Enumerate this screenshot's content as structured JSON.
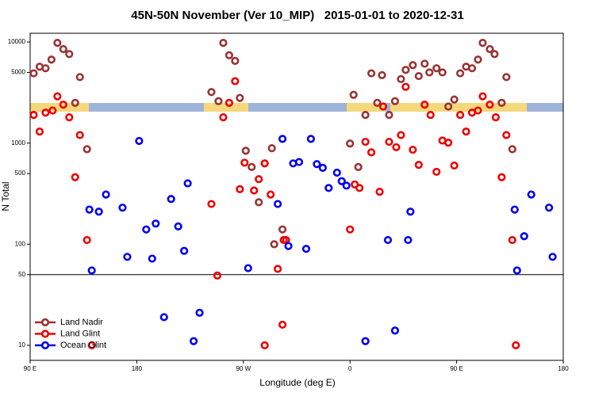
{
  "chart_data": {
    "type": "scatter",
    "title": "45N-50N November (Ver 10_MIP)   2015-01-01 to 2020-12-31",
    "x_label": "Longitude (deg E)",
    "y_label": "N Total",
    "xlim": [
      90,
      540
    ],
    "xticks": [
      {
        "value": 90,
        "label": "90 E"
      },
      180,
      {
        "value": 270,
        "label": "90 W"
      },
      {
        "value": 360,
        "label": "0"
      },
      {
        "value": 450,
        "label": "90 E"
      },
      {
        "value": 540,
        "label": "180"
      }
    ],
    "ylim": [
      7.1,
      12200
    ],
    "y_scale": "log",
    "yticks": [
      10,
      50,
      100,
      500,
      1000,
      5000,
      10000
    ],
    "hline": 50,
    "legend": "bottomleft",
    "series": [
      {
        "name": "Land Nadir",
        "color": "#993333",
        "x": [
          93,
          98,
          103,
          108,
          113,
          118,
          123,
          128,
          132,
          138,
          243,
          249,
          253,
          258,
          263,
          267,
          272,
          277,
          283,
          288,
          294,
          296,
          303,
          360,
          363,
          367,
          373,
          378,
          383,
          387,
          393,
          398,
          403,
          407,
          413,
          418,
          423,
          427,
          433,
          438,
          443,
          448,
          453,
          458,
          463,
          468,
          472,
          478,
          482,
          488,
          492,
          497
        ],
        "values": [
          4900,
          5700,
          5500,
          6700,
          9800,
          8500,
          7600,
          2500,
          4500,
          870,
          3200,
          2600,
          9800,
          7400,
          6500,
          2800,
          840,
          580,
          260,
          630,
          890,
          100,
          140,
          990,
          3000,
          580,
          1900,
          4900,
          2500,
          4700,
          1900,
          2600,
          4300,
          5300,
          5900,
          4600,
          6100,
          5000,
          5500,
          5000,
          2300,
          2700,
          4900,
          5700,
          5500,
          6700,
          9800,
          8500,
          7600,
          2500,
          4500,
          870
        ]
      },
      {
        "name": "Land Glint",
        "color": "#ee0000",
        "x": [
          93,
          98,
          103,
          109,
          113,
          118,
          123,
          128,
          132,
          138,
          142,
          243,
          248,
          253,
          258,
          263,
          267,
          271,
          279,
          283,
          288,
          293,
          299,
          304,
          306,
          303,
          288,
          360,
          364,
          368,
          373,
          378,
          385,
          388,
          393,
          399,
          403,
          407,
          413,
          418,
          423,
          428,
          433,
          438,
          443,
          448,
          453,
          458,
          463,
          468,
          472,
          478,
          483,
          488,
          492,
          497,
          500
        ],
        "values": [
          1900,
          1300,
          2000,
          2100,
          2900,
          2400,
          1800,
          460,
          1200,
          110,
          10,
          250,
          49,
          1800,
          2500,
          4100,
          350,
          640,
          340,
          440,
          630,
          310,
          57,
          110,
          110,
          16,
          10,
          140,
          390,
          360,
          1030,
          810,
          330,
          2300,
          1030,
          910,
          1200,
          3600,
          860,
          610,
          2400,
          1900,
          520,
          1060,
          1010,
          600,
          1900,
          1300,
          2000,
          2100,
          2900,
          2400,
          1800,
          460,
          1200,
          110,
          10
        ]
      },
      {
        "name": "Ocean Glint",
        "color": "#0000ee",
        "x": [
          140,
          142,
          148,
          154,
          168,
          172,
          182,
          188,
          193,
          196,
          203,
          209,
          215,
          220,
          223,
          228,
          233,
          274,
          299,
          303,
          308,
          312,
          317,
          323,
          327,
          332,
          337,
          342,
          349,
          353,
          357,
          373,
          392,
          398,
          409,
          411,
          499,
          501,
          507,
          513,
          528,
          531
        ],
        "values": [
          220,
          55,
          210,
          310,
          230,
          75,
          1050,
          140,
          72,
          160,
          19,
          280,
          150,
          86,
          400,
          11,
          21,
          58,
          250,
          1100,
          96,
          630,
          650,
          90,
          1100,
          620,
          570,
          360,
          510,
          420,
          380,
          11,
          110,
          14,
          110,
          210,
          220,
          55,
          120,
          310,
          230,
          75
        ]
      }
    ]
  }
}
